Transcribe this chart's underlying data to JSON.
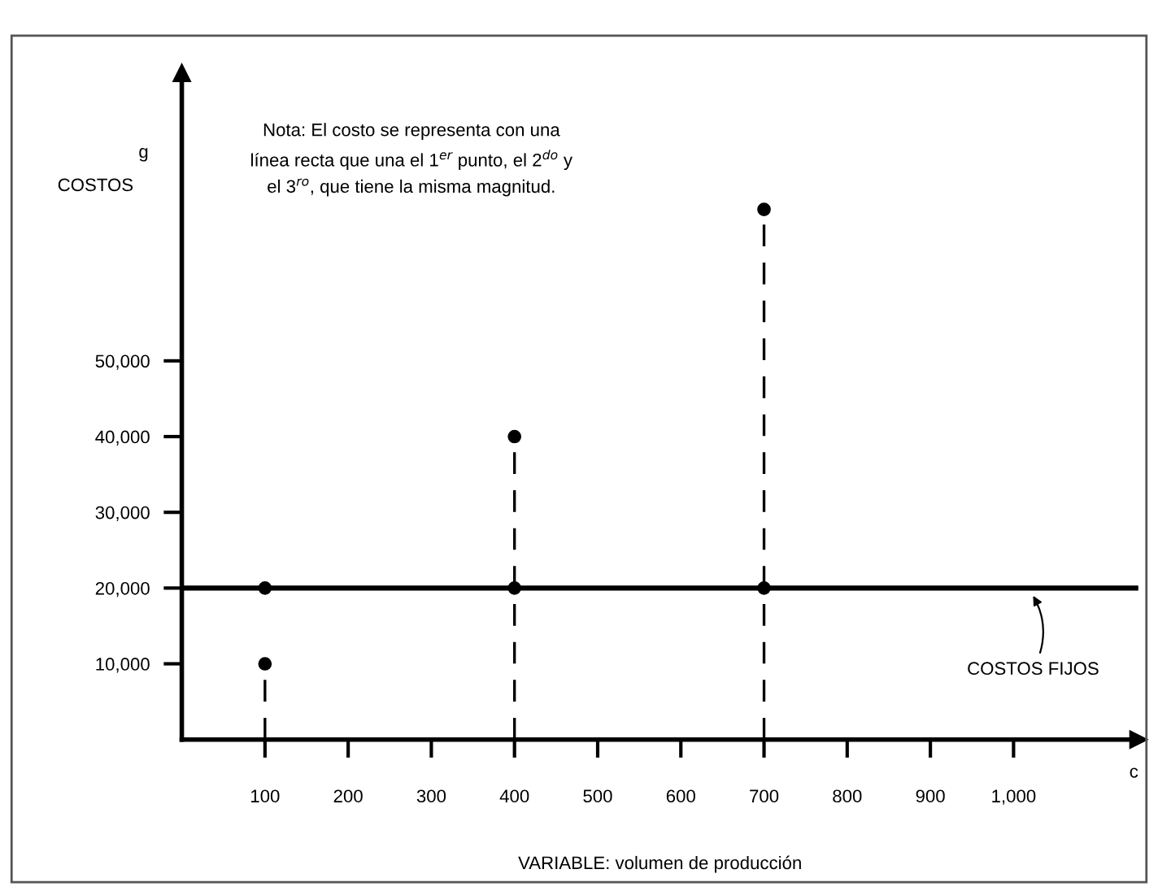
{
  "chart_data": {
    "type": "lollipop",
    "ylabel": "COSTOS",
    "xlabel": "VARIABLE: volumen de producción",
    "annotations": [
      "Nota: El costo se representa con una\nlínea recta que una el 1$^{er}$ punto, el 2$^{do}$ y\nel 3$^{ro}$, que tiene la misma magnitud.",
      "g",
      "c"
    ],
    "series": [
      {
        "x": [
          100,
          400,
          700
        ],
        "values": [
          10000,
          40000,
          70000
        ],
        "color": "#000000",
        "line_style": "dashed"
      },
      {
        "type": "scatter",
        "x": [
          100,
          400,
          700
        ],
        "values": [
          20000,
          20000,
          20000
        ],
        "color": "#000000"
      }
    ],
    "marker": "circle",
    "ref_lines": [
      {
        "axis": "y",
        "value": 20000,
        "label": "COSTOS FIJOS",
        "color": "#000000"
      }
    ],
    "xlim": [
      0,
      1150
    ],
    "ylim": [
      0,
      88000
    ],
    "xticks": [
      100,
      200,
      300,
      400,
      500,
      600,
      700,
      800,
      900,
      {
        "value": 1000,
        "label": "1,000"
      }
    ],
    "yticks": [
      {
        "value": 10000,
        "label": "10,000"
      },
      {
        "value": 20000,
        "label": "20,000"
      },
      {
        "value": 30000,
        "label": "30,000"
      },
      {
        "value": 40000,
        "label": "40,000"
      },
      {
        "value": 50000,
        "label": "50,000"
      }
    ]
  }
}
